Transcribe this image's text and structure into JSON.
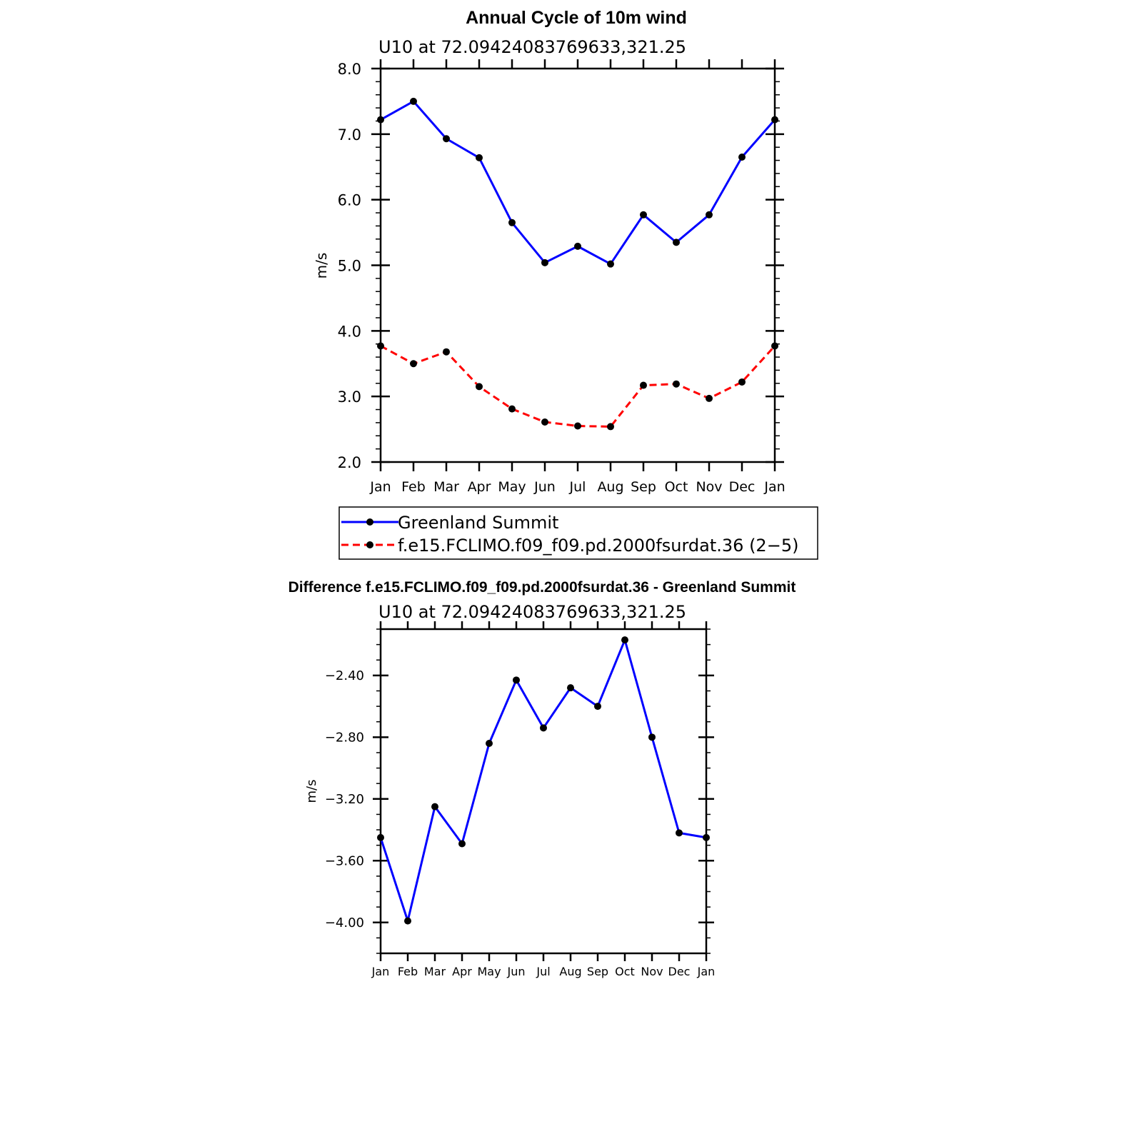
{
  "chart_data": [
    {
      "type": "line",
      "title": "Annual Cycle of 10m wind",
      "subtitle": "U10 at 72.09424083769633,321.25",
      "ylabel": "m/s",
      "xlabel": "",
      "categories": [
        "Jan",
        "Feb",
        "Mar",
        "Apr",
        "May",
        "Jun",
        "Jul",
        "Aug",
        "Sep",
        "Oct",
        "Nov",
        "Dec",
        "Jan"
      ],
      "ylim": [
        2.0,
        8.0
      ],
      "yticks": [
        "2.0",
        "3.0",
        "4.0",
        "5.0",
        "6.0",
        "7.0",
        "8.0"
      ],
      "legend_position": "bottom",
      "series": [
        {
          "name": "Greenland Summit",
          "color": "#0000ff",
          "dash": "solid",
          "values": [
            7.22,
            7.5,
            6.93,
            6.64,
            5.65,
            5.04,
            5.29,
            5.02,
            5.77,
            5.35,
            5.77,
            6.65,
            7.22
          ]
        },
        {
          "name": "f.e15.FCLIMO.f09_f09.pd.2000fsurdat.36 (2−5)",
          "color": "#ff0000",
          "dash": "dashed",
          "values": [
            3.77,
            3.5,
            3.68,
            3.15,
            2.81,
            2.61,
            2.55,
            2.54,
            3.17,
            3.19,
            2.97,
            3.22,
            3.77
          ]
        }
      ]
    },
    {
      "type": "line",
      "title": "Difference f.e15.FCLIMO.f09_f09.pd.2000fsurdat.36 - Greenland Summit",
      "subtitle": "U10 at 72.09424083769633,321.25",
      "ylabel": "m/s",
      "xlabel": "",
      "categories": [
        "Jan",
        "Feb",
        "Mar",
        "Apr",
        "May",
        "Jun",
        "Jul",
        "Aug",
        "Sep",
        "Oct",
        "Nov",
        "Dec",
        "Jan"
      ],
      "ylim": [
        -4.2,
        -2.1
      ],
      "yticks": [
        "-4.00",
        "-3.60",
        "-3.20",
        "-2.80",
        "-2.40"
      ],
      "series": [
        {
          "color": "#0000ff",
          "dash": "solid",
          "values": [
            -3.45,
            -3.99,
            -3.25,
            -3.49,
            -2.84,
            -2.43,
            -2.74,
            -2.48,
            -2.6,
            -2.17,
            -2.8,
            -3.42,
            -3.45
          ]
        }
      ]
    }
  ]
}
